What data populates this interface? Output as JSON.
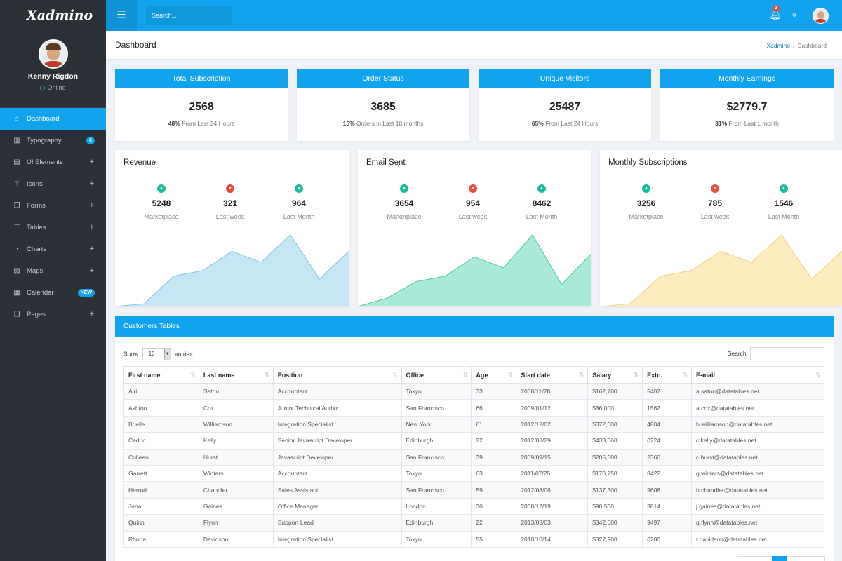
{
  "app": {
    "logo": "Xadmino"
  },
  "profile": {
    "name": "Kenny Rigdon",
    "status": "Online"
  },
  "sidebar": {
    "items": [
      {
        "label": "Dashboard",
        "icon": "home-icon",
        "glyph": "⌂",
        "active": true
      },
      {
        "label": "Typography",
        "icon": "book-icon",
        "glyph": "▥",
        "badge": "6"
      },
      {
        "label": "UI Elements",
        "icon": "layout-icon",
        "glyph": "▤",
        "plus": "+"
      },
      {
        "label": "Icons",
        "icon": "wand-icon",
        "glyph": "⚚",
        "plus": "+"
      },
      {
        "label": "Forms",
        "icon": "form-icon",
        "glyph": "❐",
        "plus": "+"
      },
      {
        "label": "Tables",
        "icon": "list-icon",
        "glyph": "☰",
        "plus": "+"
      },
      {
        "label": "Charts",
        "icon": "pie-chart-icon",
        "glyph": "◔",
        "plus": "+"
      },
      {
        "label": "Maps",
        "icon": "map-icon",
        "glyph": "▨",
        "plus": "+"
      },
      {
        "label": "Calendar",
        "icon": "calendar-icon",
        "glyph": "▦",
        "badge": "NEW"
      },
      {
        "label": "Pages",
        "icon": "pages-icon",
        "glyph": "❏",
        "plus": "+"
      }
    ]
  },
  "topbar": {
    "search_placeholder": "Search...",
    "notification_count": "3"
  },
  "page": {
    "title": "Dashboard",
    "breadcrumb": [
      "Xadmino",
      "Dashboard"
    ]
  },
  "stats": [
    {
      "title": "Total Subscription",
      "value": "2568",
      "sub_bold": "48%",
      "sub": " From Last 24 Hours"
    },
    {
      "title": "Order Status",
      "value": "3685",
      "sub_bold": "15%",
      "sub": " Orders in Last 10 months"
    },
    {
      "title": "Unique Visitors",
      "value": "25487",
      "sub_bold": "65%",
      "sub": " From Last 24 Hours"
    },
    {
      "title": "Monthly Earnings",
      "value": "$2779.7",
      "sub_bold": "31%",
      "sub": " From Last 1 month"
    }
  ],
  "cards": [
    {
      "title": "Revenue",
      "color": "#c5e7f5",
      "stroke": "#7fc6e3",
      "metrics": [
        {
          "dir": "up",
          "value": "5248",
          "label": "Marketplace"
        },
        {
          "dir": "down",
          "value": "321",
          "label": "Last week"
        },
        {
          "dir": "up",
          "value": "964",
          "label": "Last Month"
        }
      ]
    },
    {
      "title": "Email Sent",
      "color": "#a9e9d8",
      "stroke": "#4cc9a7",
      "metrics": [
        {
          "dir": "up",
          "value": "3654",
          "label": "Marketplace"
        },
        {
          "dir": "down",
          "value": "954",
          "label": "Last week"
        },
        {
          "dir": "up",
          "value": "8462",
          "label": "Last Month"
        }
      ]
    },
    {
      "title": "Monthly Subscriptions",
      "color": "#fdecc0",
      "stroke": "#f5d27a",
      "metrics": [
        {
          "dir": "up",
          "value": "3256",
          "label": "Marketplace"
        },
        {
          "dir": "down",
          "value": "785",
          "label": "Last week"
        },
        {
          "dir": "up",
          "value": "1546",
          "label": "Last Month"
        }
      ]
    }
  ],
  "chart_data": [
    {
      "type": "area",
      "x": [
        0,
        1,
        2,
        3,
        4,
        5,
        6,
        7,
        8
      ],
      "series": [
        {
          "values": [
            0,
            5,
            55,
            65,
            100,
            80,
            130,
            50,
            100
          ]
        }
      ]
    },
    {
      "type": "area",
      "x": [
        0,
        1,
        2,
        3,
        4,
        5,
        6,
        7,
        8
      ],
      "series": [
        {
          "values": [
            0,
            15,
            45,
            55,
            90,
            70,
            130,
            40,
            95
          ]
        }
      ]
    },
    {
      "type": "area",
      "x": [
        0,
        1,
        2,
        3,
        4,
        5,
        6,
        7,
        8
      ],
      "series": [
        {
          "values": [
            0,
            5,
            55,
            65,
            100,
            80,
            130,
            50,
            100
          ]
        }
      ]
    }
  ],
  "table": {
    "title": "Customers Tables",
    "show_label": "Show",
    "entries_value": "10",
    "entries_label": "entries",
    "search_label": "Search:",
    "columns": [
      "First name",
      "Last name",
      "Position",
      "Office",
      "Age",
      "Start date",
      "Salary",
      "Extn.",
      "E-mail"
    ],
    "rows": [
      [
        "Airi",
        "Satou",
        "Accountant",
        "Tokyo",
        "33",
        "2008/11/28",
        "$162,700",
        "5407",
        "a.satou@datatables.net"
      ],
      [
        "Ashton",
        "Cox",
        "Junior Technical Author",
        "San Francisco",
        "66",
        "2009/01/12",
        "$86,000",
        "1562",
        "a.cox@datatables.net"
      ],
      [
        "Brielle",
        "Williamson",
        "Integration Specialist",
        "New York",
        "61",
        "2012/12/02",
        "$372,000",
        "4804",
        "b.williamson@datatables.net"
      ],
      [
        "Cedric",
        "Kelly",
        "Senior Javascript Developer",
        "Edinburgh",
        "22",
        "2012/03/29",
        "$433,060",
        "6224",
        "c.kelly@datatables.net"
      ],
      [
        "Colleen",
        "Hurst",
        "Javascript Developer",
        "San Francisco",
        "39",
        "2009/09/15",
        "$205,500",
        "2360",
        "c.hurst@datatables.net"
      ],
      [
        "Garrett",
        "Winters",
        "Accountant",
        "Tokyo",
        "63",
        "2011/07/25",
        "$170,750",
        "8422",
        "g.winters@datatables.net"
      ],
      [
        "Herrod",
        "Chandler",
        "Sales Assistant",
        "San Francisco",
        "59",
        "2012/08/06",
        "$137,500",
        "9608",
        "h.chandler@datatables.net"
      ],
      [
        "Jena",
        "Gaines",
        "Office Manager",
        "London",
        "30",
        "2008/12/19",
        "$90,560",
        "3814",
        "j.gaines@datatables.net"
      ],
      [
        "Quinn",
        "Flynn",
        "Support Lead",
        "Edinburgh",
        "22",
        "2013/03/03",
        "$342,000",
        "9497",
        "q.flynn@datatables.net"
      ],
      [
        "Rhona",
        "Davidson",
        "Integration Specialist",
        "Tokyo",
        "55",
        "2010/10/14",
        "$327,900",
        "6200",
        "r.davidson@datatables.net"
      ]
    ]
  }
}
